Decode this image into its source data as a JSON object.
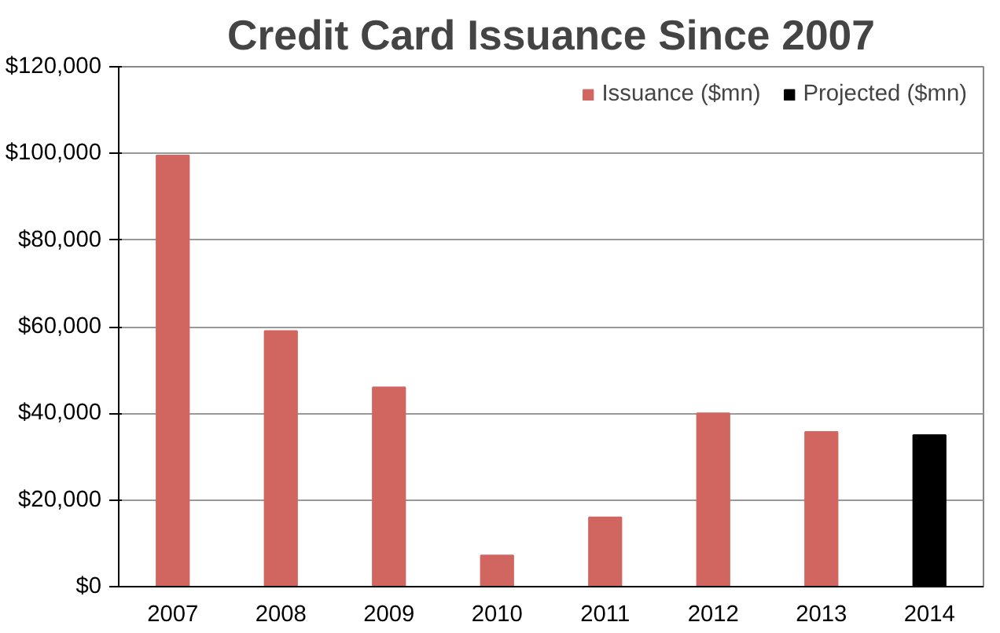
{
  "chart_data": {
    "type": "bar",
    "title": "Credit Card Issuance Since 2007",
    "categories": [
      "2007",
      "2008",
      "2009",
      "2010",
      "2011",
      "2012",
      "2013",
      "2014"
    ],
    "series": [
      {
        "name": "Issuance ($mn)",
        "color": "#d0665f",
        "values": [
          99500,
          59000,
          46000,
          7200,
          16000,
          40000,
          35700,
          null
        ]
      },
      {
        "name": "Projected ($mn)",
        "color": "#000000",
        "values": [
          null,
          null,
          null,
          null,
          null,
          null,
          null,
          35000
        ]
      }
    ],
    "ylim": [
      0,
      120000
    ],
    "yticks": [
      {
        "value": 0,
        "label": "$0"
      },
      {
        "value": 20000,
        "label": "$20,000"
      },
      {
        "value": 40000,
        "label": "$40,000"
      },
      {
        "value": 60000,
        "label": "$60,000"
      },
      {
        "value": 80000,
        "label": "$80,000"
      },
      {
        "value": 100000,
        "label": "$100,000"
      },
      {
        "value": 120000,
        "label": "$120,000"
      }
    ],
    "grid": "y",
    "legend": "top right"
  }
}
